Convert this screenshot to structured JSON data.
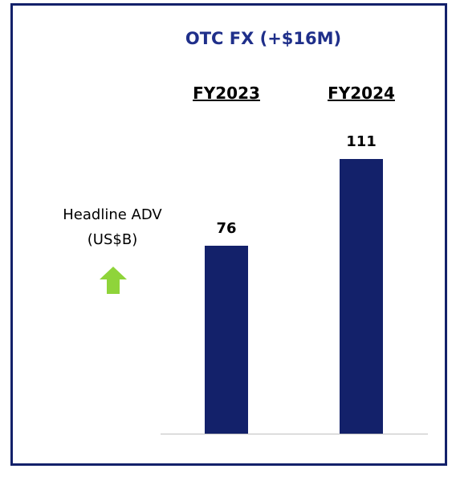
{
  "chart_data": {
    "type": "bar",
    "title": "OTC FX (+$16M)",
    "y_label": "Headline ADV (US$B)",
    "categories": [
      "FY2023",
      "FY2024"
    ],
    "values": [
      76,
      111
    ],
    "color": "#13216a"
  }
}
